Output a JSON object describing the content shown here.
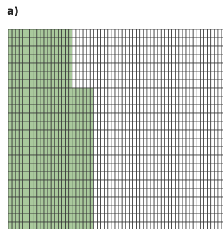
{
  "label": "a)"
}
